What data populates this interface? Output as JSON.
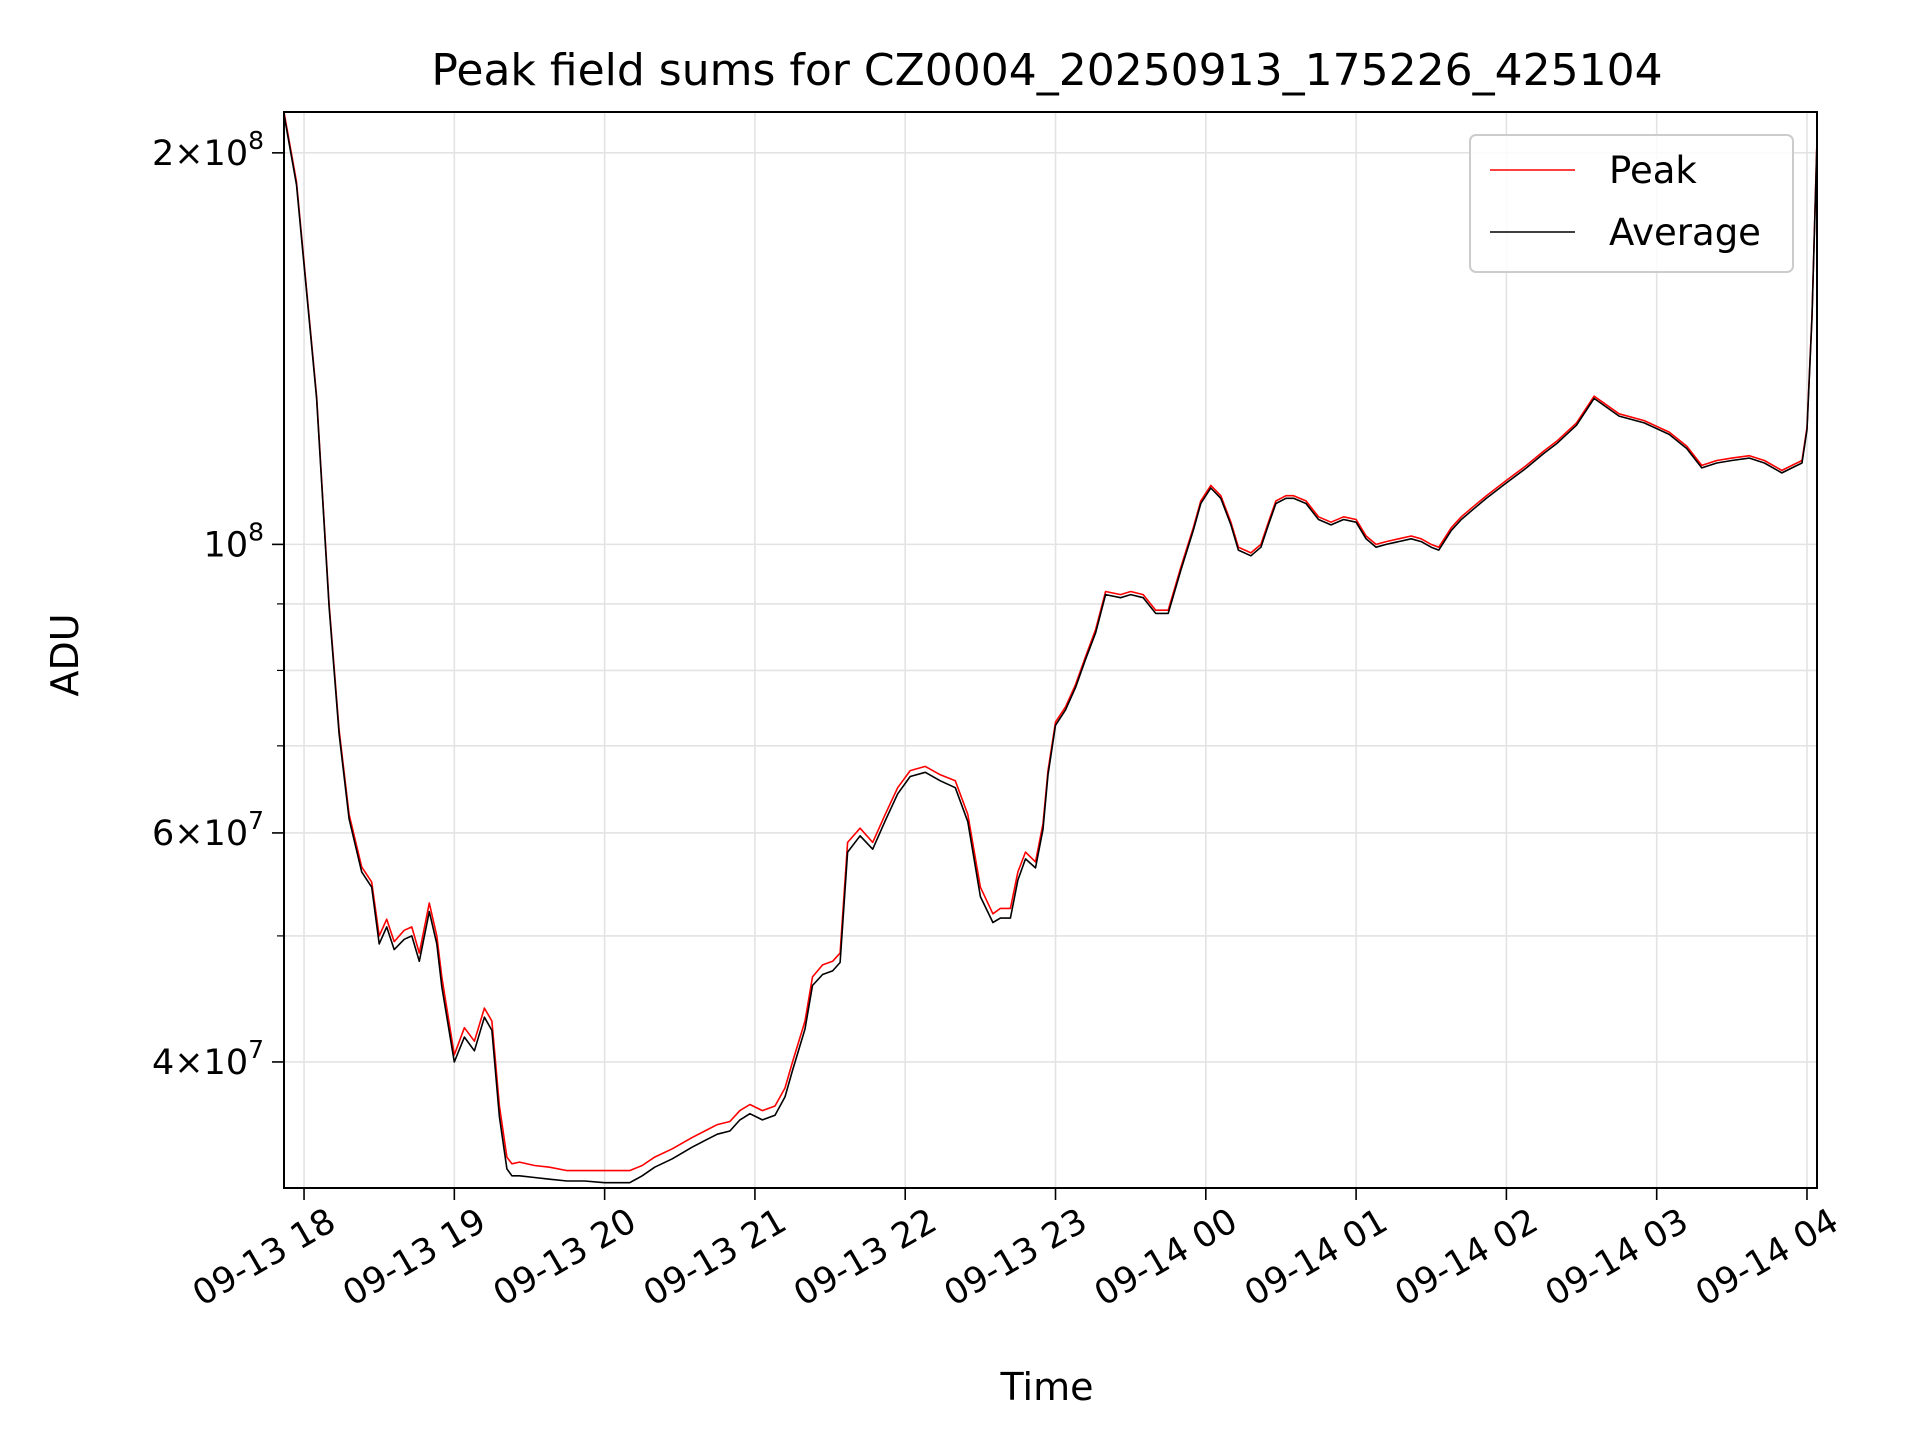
{
  "chart_data": {
    "type": "line",
    "title": "Peak field sums for CZ0004_20250913_175226_425104",
    "xlabel": "Time",
    "ylabel": "ADU",
    "yscale": "log",
    "ylim": [
      32000000,
      215000000
    ],
    "xlim": [
      "2025-09-13 17:52",
      "2025-09-14 04:04"
    ],
    "grid": true,
    "legend_position": "upper right",
    "x_ticks": [
      {
        "t": "2025-09-13 18:00",
        "label": "09-13 18"
      },
      {
        "t": "2025-09-13 19:00",
        "label": "09-13 19"
      },
      {
        "t": "2025-09-13 20:00",
        "label": "09-13 20"
      },
      {
        "t": "2025-09-13 21:00",
        "label": "09-13 21"
      },
      {
        "t": "2025-09-13 22:00",
        "label": "09-13 22"
      },
      {
        "t": "2025-09-13 23:00",
        "label": "09-13 23"
      },
      {
        "t": "2025-09-14 00:00",
        "label": "09-14 00"
      },
      {
        "t": "2025-09-14 01:00",
        "label": "09-14 01"
      },
      {
        "t": "2025-09-14 02:00",
        "label": "09-14 02"
      },
      {
        "t": "2025-09-14 03:00",
        "label": "09-14 03"
      },
      {
        "t": "2025-09-14 04:00",
        "label": "09-14 04"
      }
    ],
    "y_major_ticks": [
      {
        "value": 40000000,
        "base": "4",
        "exp": "7"
      },
      {
        "value": 60000000,
        "base": "6",
        "exp": "7"
      },
      {
        "value": 100000000,
        "base": "",
        "exp": "8"
      },
      {
        "value": 200000000,
        "base": "2",
        "exp": "8"
      }
    ],
    "y_minor_gridlines": [
      50000000,
      70000000,
      80000000,
      90000000
    ],
    "x": [
      "2025-09-13 17:52",
      "2025-09-13 17:57",
      "2025-09-13 18:05",
      "2025-09-13 18:10",
      "2025-09-13 18:14",
      "2025-09-13 18:18",
      "2025-09-13 18:23",
      "2025-09-13 18:27",
      "2025-09-13 18:30",
      "2025-09-13 18:33",
      "2025-09-13 18:36",
      "2025-09-13 18:40",
      "2025-09-13 18:43",
      "2025-09-13 18:46",
      "2025-09-13 18:50",
      "2025-09-13 18:53",
      "2025-09-13 18:55",
      "2025-09-13 19:00",
      "2025-09-13 19:04",
      "2025-09-13 19:08",
      "2025-09-13 19:12",
      "2025-09-13 19:15",
      "2025-09-13 19:18",
      "2025-09-13 19:21",
      "2025-09-13 19:23",
      "2025-09-13 19:26",
      "2025-09-13 19:32",
      "2025-09-13 19:38",
      "2025-09-13 19:45",
      "2025-09-13 19:52",
      "2025-09-13 20:00",
      "2025-09-13 20:10",
      "2025-09-13 20:15",
      "2025-09-13 20:20",
      "2025-09-13 20:27",
      "2025-09-13 20:35",
      "2025-09-13 20:40",
      "2025-09-13 20:45",
      "2025-09-13 20:50",
      "2025-09-13 20:54",
      "2025-09-13 20:58",
      "2025-09-13 21:03",
      "2025-09-13 21:08",
      "2025-09-13 21:12",
      "2025-09-13 21:15",
      "2025-09-13 21:20",
      "2025-09-13 21:23",
      "2025-09-13 21:27",
      "2025-09-13 21:31",
      "2025-09-13 21:34",
      "2025-09-13 21:37",
      "2025-09-13 21:42",
      "2025-09-13 21:47",
      "2025-09-13 21:52",
      "2025-09-13 21:57",
      "2025-09-13 22:02",
      "2025-09-13 22:08",
      "2025-09-13 22:14",
      "2025-09-13 22:20",
      "2025-09-13 22:25",
      "2025-09-13 22:30",
      "2025-09-13 22:35",
      "2025-09-13 22:38",
      "2025-09-13 22:42",
      "2025-09-13 22:45",
      "2025-09-13 22:48",
      "2025-09-13 22:52",
      "2025-09-13 22:55",
      "2025-09-13 22:57",
      "2025-09-13 23:00",
      "2025-09-13 23:04",
      "2025-09-13 23:08",
      "2025-09-13 23:12",
      "2025-09-13 23:16",
      "2025-09-13 23:20",
      "2025-09-13 23:26",
      "2025-09-13 23:30",
      "2025-09-13 23:35",
      "2025-09-13 23:40",
      "2025-09-13 23:45",
      "2025-09-13 23:50",
      "2025-09-13 23:55",
      "2025-09-13 23:58",
      "2025-09-14 00:02",
      "2025-09-14 00:06",
      "2025-09-14 00:10",
      "2025-09-14 00:13",
      "2025-09-14 00:18",
      "2025-09-14 00:22",
      "2025-09-14 00:25",
      "2025-09-14 00:28",
      "2025-09-14 00:32",
      "2025-09-14 00:35",
      "2025-09-14 00:40",
      "2025-09-14 00:45",
      "2025-09-14 00:50",
      "2025-09-14 00:55",
      "2025-09-14 01:00",
      "2025-09-14 01:04",
      "2025-09-14 01:08",
      "2025-09-14 01:12",
      "2025-09-14 01:17",
      "2025-09-14 01:22",
      "2025-09-14 01:26",
      "2025-09-14 01:30",
      "2025-09-14 01:33",
      "2025-09-14 01:38",
      "2025-09-14 01:42",
      "2025-09-14 01:47",
      "2025-09-14 01:52",
      "2025-09-14 02:00",
      "2025-09-14 02:08",
      "2025-09-14 02:15",
      "2025-09-14 02:20",
      "2025-09-14 02:28",
      "2025-09-14 02:35",
      "2025-09-14 02:45",
      "2025-09-14 02:55",
      "2025-09-14 03:05",
      "2025-09-14 03:12",
      "2025-09-14 03:18",
      "2025-09-14 03:24",
      "2025-09-14 03:30",
      "2025-09-14 03:37",
      "2025-09-14 03:43",
      "2025-09-14 03:50",
      "2025-09-14 03:54",
      "2025-09-14 03:58",
      "2025-09-14 04:00",
      "2025-09-14 04:02",
      "2025-09-14 04:04"
    ],
    "series": [
      {
        "name": "Peak",
        "color": "#ff0000",
        "values": [
          215000000,
          190000000,
          130000000,
          90000000,
          72000000,
          62000000,
          56500000,
          55000000,
          50000000,
          51500000,
          49500000,
          50500000,
          50800000,
          48500000,
          53000000,
          50000000,
          46500000,
          40500000,
          42500000,
          41500000,
          44000000,
          43000000,
          37000000,
          33800000,
          33400000,
          33500000,
          33300000,
          33200000,
          33000000,
          33000000,
          33000000,
          33000000,
          33300000,
          33800000,
          34300000,
          35000000,
          35400000,
          35800000,
          36000000,
          36700000,
          37100000,
          36700000,
          37000000,
          38200000,
          40000000,
          43000000,
          46500000,
          47500000,
          47800000,
          48500000,
          59000000,
          60500000,
          59000000,
          62000000,
          65000000,
          67000000,
          67500000,
          66500000,
          65800000,
          62000000,
          54500000,
          52000000,
          52500000,
          52500000,
          56000000,
          58000000,
          57000000,
          61000000,
          67000000,
          73000000,
          75000000,
          78000000,
          82000000,
          86000000,
          92000000,
          91500000,
          92000000,
          91500000,
          89000000,
          89000000,
          96000000,
          103000000,
          108000000,
          111000000,
          109000000,
          104000000,
          99500000,
          98500000,
          100000000,
          104000000,
          108000000,
          109000000,
          109000000,
          108000000,
          105000000,
          104000000,
          105000000,
          104500000,
          101500000,
          100000000,
          100500000,
          101000000,
          101500000,
          101000000,
          100000000,
          99500000,
          103000000,
          105000000,
          107000000,
          109000000,
          112000000,
          115000000,
          118000000,
          120000000,
          124000000,
          130000000,
          126000000,
          124500000,
          122000000,
          119000000,
          115000000,
          116000000,
          116500000,
          117000000,
          116000000,
          114000000,
          115000000,
          116000000,
          123000000,
          150000000,
          205000000
        ]
      },
      {
        "name": "Average",
        "color": "#000000",
        "values": [
          214000000,
          189000000,
          129500000,
          89500000,
          71500000,
          61500000,
          56000000,
          54500000,
          49300000,
          50800000,
          48800000,
          49700000,
          50000000,
          47800000,
          52200000,
          49300000,
          45700000,
          40000000,
          41800000,
          40800000,
          43300000,
          42300000,
          36300000,
          33100000,
          32700000,
          32700000,
          32600000,
          32500000,
          32400000,
          32400000,
          32300000,
          32300000,
          32700000,
          33200000,
          33700000,
          34400000,
          34800000,
          35200000,
          35400000,
          36100000,
          36500000,
          36100000,
          36400000,
          37600000,
          39400000,
          42400000,
          45800000,
          46700000,
          47000000,
          47700000,
          58000000,
          59700000,
          58300000,
          61300000,
          64300000,
          66300000,
          66800000,
          65800000,
          65000000,
          61200000,
          53600000,
          51200000,
          51600000,
          51600000,
          55200000,
          57300000,
          56400000,
          60400000,
          66500000,
          72600000,
          74600000,
          77600000,
          81600000,
          85500000,
          91500000,
          91000000,
          91500000,
          91000000,
          88500000,
          88500000,
          95500000,
          102500000,
          107500000,
          110500000,
          108500000,
          103500000,
          99000000,
          98000000,
          99500000,
          103500000,
          107500000,
          108500000,
          108500000,
          107500000,
          104500000,
          103500000,
          104500000,
          104000000,
          101000000,
          99500000,
          100000000,
          100500000,
          101000000,
          100500000,
          99500000,
          99000000,
          102500000,
          104500000,
          106500000,
          108500000,
          111500000,
          114500000,
          117500000,
          119500000,
          123500000,
          129500000,
          125500000,
          124000000,
          121500000,
          118500000,
          114500000,
          115500000,
          116000000,
          116500000,
          115500000,
          113500000,
          114500000,
          115500000,
          122500000,
          149500000,
          204000000
        ]
      }
    ]
  }
}
